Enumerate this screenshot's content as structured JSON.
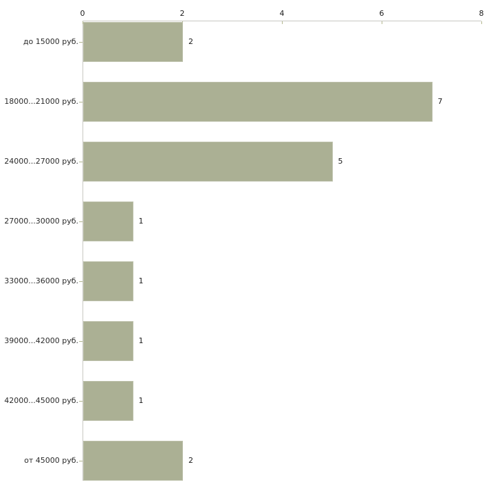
{
  "chart_data": {
    "type": "bar",
    "orientation": "horizontal",
    "title": "",
    "xlabel": "",
    "ylabel": "",
    "categories": [
      "до 15000 руб.",
      "18000...21000 руб.",
      "24000...27000 руб.",
      "27000...30000 руб.",
      "33000...36000 руб.",
      "39000...42000 руб.",
      "42000...45000 руб.",
      "от 45000 руб."
    ],
    "values": [
      2,
      7,
      5,
      1,
      1,
      1,
      1,
      2
    ],
    "x_ticks": [
      0,
      2,
      4,
      6,
      8
    ],
    "xlim": [
      0,
      8
    ],
    "grid": false,
    "legend": "none",
    "value_labels_shown": true,
    "colors": {
      "bar": "#abb094",
      "axis_line": "#c8c8c2",
      "tick_mark": "#b2b68d",
      "tick_label": "#1a1a1a",
      "category_label": "#2a2a2a",
      "value_label": "#1a1a1a",
      "background": "#ffffff"
    }
  }
}
